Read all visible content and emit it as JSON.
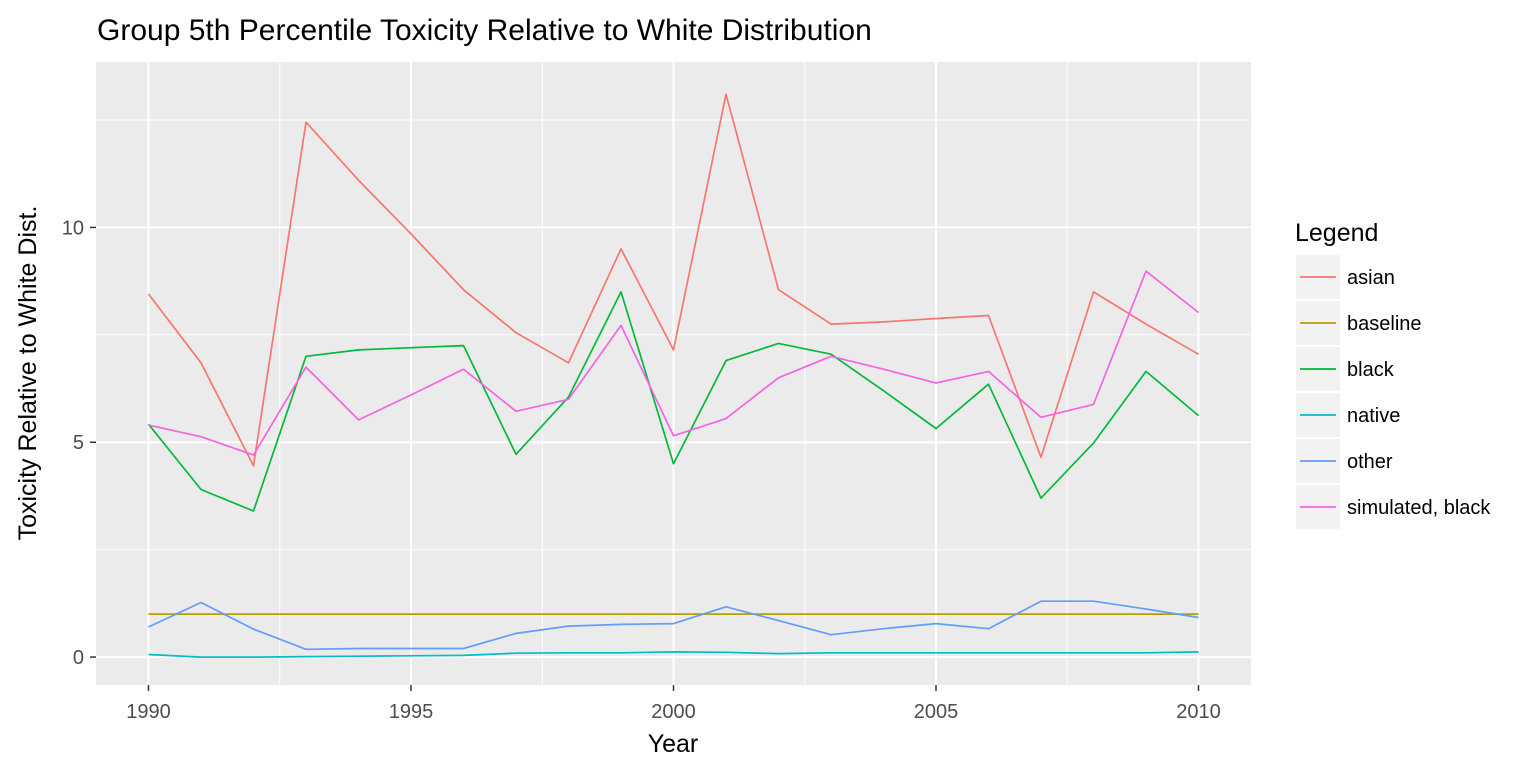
{
  "chart_data": {
    "type": "line",
    "title": "Group 5th Percentile Toxicity Relative to White Distribution",
    "xlabel": "Year",
    "ylabel": "Toxicity Relative to White Dist.",
    "xlim": [
      1989,
      2011
    ],
    "ylim": [
      -0.65,
      13.85
    ],
    "x_ticks": [
      1990,
      1995,
      2000,
      2005,
      2010
    ],
    "y_ticks": [
      0,
      5,
      10
    ],
    "grid": true,
    "background": "#ebebeb",
    "legend": {
      "title": "Legend",
      "position": "right"
    },
    "x": [
      1990,
      1991,
      1992,
      1993,
      1994,
      1995,
      1996,
      1997,
      1998,
      1999,
      2000,
      2001,
      2002,
      2003,
      2004,
      2005,
      2006,
      2007,
      2008,
      2009,
      2010
    ],
    "series": [
      {
        "name": "asian",
        "color": "#F8766D",
        "values": [
          8.45,
          6.85,
          4.45,
          12.45,
          11.1,
          9.85,
          8.55,
          7.55,
          6.85,
          9.5,
          7.15,
          13.1,
          8.55,
          7.75,
          7.8,
          7.88,
          7.95,
          4.65,
          8.5,
          7.75,
          7.05
        ]
      },
      {
        "name": "baseline",
        "color": "#B79F00",
        "values": [
          1,
          1,
          1,
          1,
          1,
          1,
          1,
          1,
          1,
          1,
          1,
          1,
          1,
          1,
          1,
          1,
          1,
          1,
          1,
          1,
          1
        ]
      },
      {
        "name": "black",
        "color": "#00BA38",
        "values": [
          5.42,
          3.9,
          3.4,
          7.0,
          7.15,
          7.2,
          7.25,
          4.72,
          6.05,
          8.5,
          4.5,
          6.9,
          7.3,
          7.05,
          6.2,
          5.32,
          6.35,
          3.7,
          4.98,
          6.65,
          5.62
        ]
      },
      {
        "name": "native",
        "color": "#00BFC4",
        "values": [
          0.06,
          0.0,
          0.0,
          0.01,
          0.02,
          0.03,
          0.04,
          0.09,
          0.1,
          0.1,
          0.12,
          0.11,
          0.08,
          0.1,
          0.1,
          0.1,
          0.1,
          0.1,
          0.1,
          0.1,
          0.12
        ]
      },
      {
        "name": "other",
        "color": "#619CFF",
        "values": [
          0.7,
          1.27,
          0.65,
          0.18,
          0.2,
          0.2,
          0.2,
          0.55,
          0.72,
          0.76,
          0.78,
          1.17,
          0.85,
          0.52,
          0.66,
          0.78,
          0.66,
          1.3,
          1.3,
          1.12,
          0.92
        ]
      },
      {
        "name": "simulated, black",
        "color": "#F564E3",
        "values": [
          5.4,
          5.13,
          4.7,
          6.75,
          5.52,
          6.1,
          6.7,
          5.72,
          6.0,
          7.72,
          5.15,
          5.55,
          6.5,
          7.0,
          6.7,
          6.38,
          6.65,
          5.58,
          5.88,
          8.98,
          8.02
        ]
      }
    ]
  }
}
